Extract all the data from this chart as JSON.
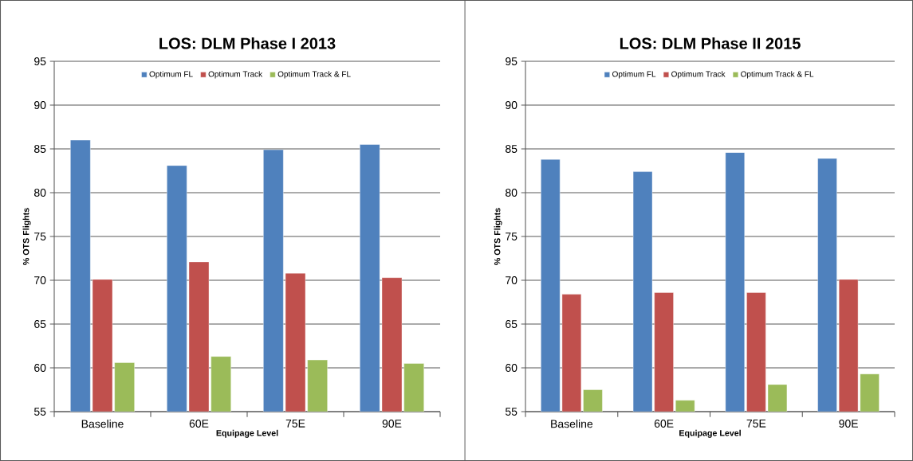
{
  "chart_data": [
    {
      "type": "bar",
      "title": "LOS: DLM Phase I 2013",
      "xlabel": "Equipage Level",
      "ylabel": "% OTS Flights",
      "categories": [
        "Baseline",
        "60E",
        "75E",
        "90E"
      ],
      "series": [
        {
          "name": "Optimum FL",
          "color": "#4f81bd",
          "values": [
            86.0,
            83.1,
            84.9,
            85.5
          ]
        },
        {
          "name": "Optimum Track",
          "color": "#c0504d",
          "values": [
            70.1,
            72.1,
            70.8,
            70.3
          ]
        },
        {
          "name": "Optimum Track & FL",
          "color": "#9bbb59",
          "values": [
            60.6,
            61.3,
            60.9,
            60.5
          ]
        }
      ],
      "ylim": [
        55,
        95
      ],
      "yticks": [
        55,
        60,
        65,
        70,
        75,
        80,
        85,
        90,
        95
      ],
      "grid": "y",
      "legend": "top"
    },
    {
      "type": "bar",
      "title": "LOS: DLM Phase II 2015",
      "xlabel": "Equipage Level",
      "ylabel": "% OTS Flights",
      "categories": [
        "Baseline",
        "60E",
        "75E",
        "90E"
      ],
      "series": [
        {
          "name": "Optimum FL",
          "color": "#4f81bd",
          "values": [
            83.8,
            82.4,
            84.6,
            83.9
          ]
        },
        {
          "name": "Optimum Track",
          "color": "#c0504d",
          "values": [
            68.4,
            68.6,
            68.6,
            70.1
          ]
        },
        {
          "name": "Optimum Track & FL",
          "color": "#9bbb59",
          "values": [
            57.5,
            56.3,
            58.1,
            59.3
          ]
        }
      ],
      "ylim": [
        55,
        95
      ],
      "yticks": [
        55,
        60,
        65,
        70,
        75,
        80,
        85,
        90,
        95
      ],
      "grid": "y",
      "legend": "top"
    }
  ]
}
